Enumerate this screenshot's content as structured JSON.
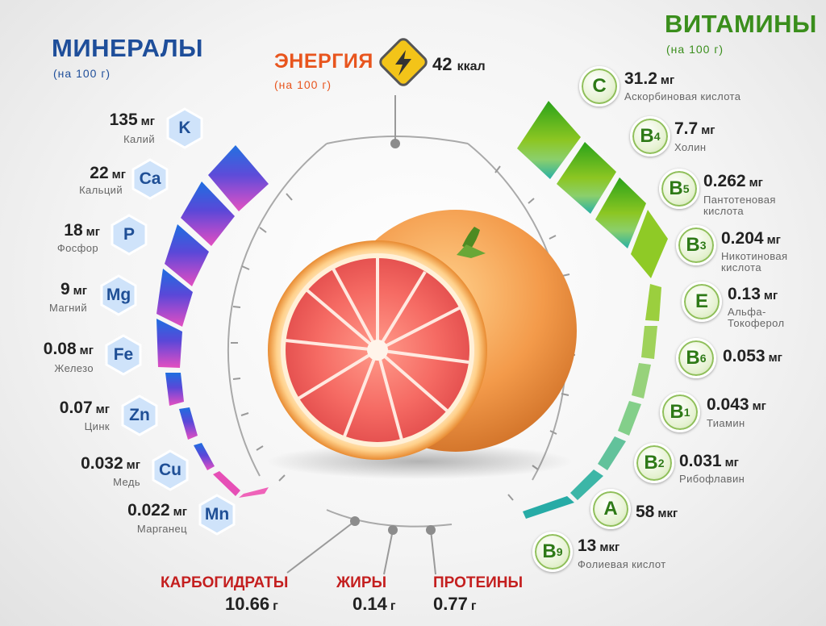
{
  "minerals": {
    "title": "МИНЕРАЛЫ",
    "subtitle": "(на 100 г)",
    "items": [
      {
        "symbol": "K",
        "value": "135",
        "unit": "мг",
        "name": "Калий"
      },
      {
        "symbol": "Ca",
        "value": "22",
        "unit": "мг",
        "name": "Кальций"
      },
      {
        "symbol": "P",
        "value": "18",
        "unit": "мг",
        "name": "Фосфор"
      },
      {
        "symbol": "Mg",
        "value": "9",
        "unit": "мг",
        "name": "Магний"
      },
      {
        "symbol": "Fe",
        "value": "0.08",
        "unit": "мг",
        "name": "Железо"
      },
      {
        "symbol": "Zn",
        "value": "0.07",
        "unit": "мг",
        "name": "Цинк"
      },
      {
        "symbol": "Cu",
        "value": "0.032",
        "unit": "мг",
        "name": "Медь"
      },
      {
        "symbol": "Mn",
        "value": "0.022",
        "unit": "мг",
        "name": "Марганец"
      }
    ]
  },
  "vitamins": {
    "title": "ВИТАМИНЫ",
    "subtitle": "(на 100 г)",
    "items": [
      {
        "symbol": "C",
        "sub": "",
        "value": "31.2",
        "unit": "мг",
        "name_line1": "Аскорбиновая кислота",
        "name_line2": ""
      },
      {
        "symbol": "B",
        "sub": "4",
        "value": "7.7",
        "unit": "мг",
        "name_line1": "Холин",
        "name_line2": ""
      },
      {
        "symbol": "B",
        "sub": "5",
        "value": "0.262",
        "unit": "мг",
        "name_line1": "Пантотеновая",
        "name_line2": "кислота"
      },
      {
        "symbol": "B",
        "sub": "3",
        "value": "0.204",
        "unit": "мг",
        "name_line1": "Никотиновая",
        "name_line2": "кислота"
      },
      {
        "symbol": "E",
        "sub": "",
        "value": "0.13",
        "unit": "мг",
        "name_line1": "Альфа-",
        "name_line2": "Токоферол"
      },
      {
        "symbol": "B",
        "sub": "6",
        "value": "0.053",
        "unit": "мг",
        "name_line1": "",
        "name_line2": ""
      },
      {
        "symbol": "B",
        "sub": "1",
        "value": "0.043",
        "unit": "мг",
        "name_line1": "Тиамин",
        "name_line2": ""
      },
      {
        "symbol": "B",
        "sub": "2",
        "value": "0.031",
        "unit": "мг",
        "name_line1": "Рибофлавин",
        "name_line2": ""
      },
      {
        "symbol": "A",
        "sub": "",
        "value": "58",
        "unit": "мкг",
        "name_line1": "",
        "name_line2": ""
      },
      {
        "symbol": "B",
        "sub": "9",
        "value": "13",
        "unit": "мкг",
        "name_line1": "Фолиевая кислот",
        "name_line2": ""
      }
    ]
  },
  "energy": {
    "title": "ЭНЕРГИЯ",
    "subtitle": "(на 100 г)",
    "value": "42",
    "unit": "ккал",
    "icon": "lightning-icon"
  },
  "macros": [
    {
      "title": "КАРБОГИДРАТЫ",
      "value": "10.66",
      "unit": "г"
    },
    {
      "title": "ЖИРЫ",
      "value": "0.14",
      "unit": "г"
    },
    {
      "title": "ПРОТЕИНЫ",
      "value": "0.77",
      "unit": "г"
    }
  ],
  "colors": {
    "minerals_accent": "#1e4e9a",
    "vitamins_accent": "#3a8e1c",
    "energy_accent": "#e8551e",
    "macros_accent": "#c41f1f"
  }
}
